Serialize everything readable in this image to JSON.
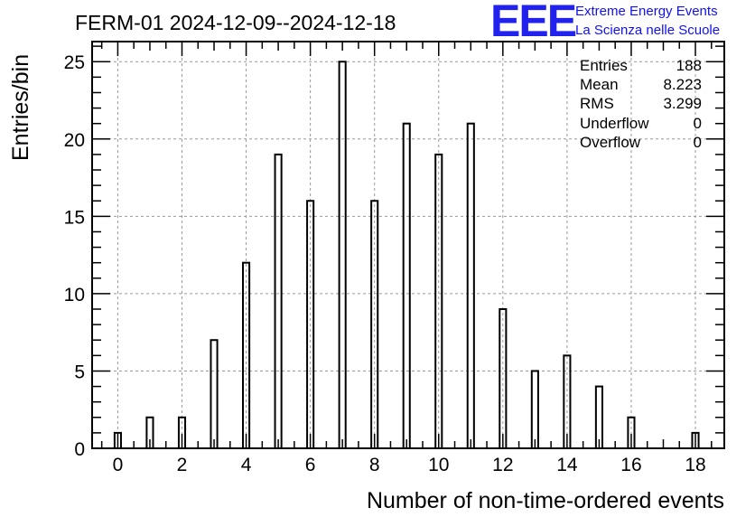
{
  "chart_data": {
    "type": "bar",
    "title": "FERM-01 2024-12-09--2024-12-18",
    "xlabel": "Number of non-time-ordered events",
    "ylabel": "Entries/bin",
    "x": [
      0,
      1,
      2,
      3,
      4,
      5,
      6,
      7,
      8,
      9,
      10,
      11,
      12,
      13,
      14,
      15,
      16,
      17,
      18
    ],
    "values": [
      1,
      2,
      2,
      7,
      12,
      19,
      16,
      25,
      16,
      21,
      19,
      21,
      9,
      5,
      6,
      4,
      2,
      0,
      1
    ],
    "xlim": [
      -0.8,
      18.9
    ],
    "ylim": [
      0,
      26.3
    ],
    "xticks": [
      0,
      2,
      4,
      6,
      8,
      10,
      12,
      14,
      16,
      18
    ],
    "yticks": [
      0,
      5,
      10,
      15,
      20,
      25
    ],
    "grid": true,
    "bar_color": "#000000",
    "grid_color": "#999999"
  },
  "logo": {
    "mark": "EEE",
    "line1": "Extreme Energy Events",
    "line2": "La Scienza nelle Scuole",
    "color": "#2222ee"
  },
  "stats": [
    {
      "label": "Entries",
      "value": "188"
    },
    {
      "label": "Mean",
      "value": "8.223"
    },
    {
      "label": "RMS",
      "value": "3.299"
    },
    {
      "label": "Underflow",
      "value": "0"
    },
    {
      "label": "Overflow",
      "value": "0"
    }
  ]
}
